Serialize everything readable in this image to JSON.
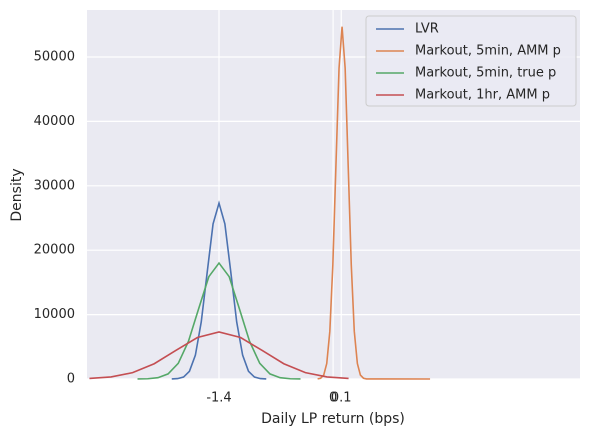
{
  "chart_data": {
    "type": "line",
    "xlabel": "Daily LP return (bps)",
    "ylabel": "Density",
    "xlim": [
      -3.02,
      3.03
    ],
    "ylim": [
      0,
      57300
    ],
    "xticks": [
      -1.4,
      0,
      0.1
    ],
    "yticks": [
      0,
      10000,
      20000,
      30000,
      40000,
      50000
    ],
    "grid": true,
    "legend": "upper right",
    "series": [
      {
        "name": "LVR",
        "color": "#4c72b0",
        "x": [
          -1.98,
          -1.908,
          -1.835,
          -1.763,
          -1.69,
          -1.618,
          -1.545,
          -1.473,
          -1.4,
          -1.328,
          -1.255,
          -1.183,
          -1.11,
          -1.038,
          -0.965,
          -0.893,
          -0.82
        ],
        "values": [
          8,
          60,
          303,
          1198,
          3694,
          8864,
          16557,
          24092,
          27300,
          24092,
          16557,
          8864,
          3694,
          1198,
          303,
          60,
          8
        ]
      },
      {
        "name": "Markout, 5min, AMM p",
        "color": "#dd8452",
        "x": [
          -0.19,
          -0.153,
          -0.115,
          -0.078,
          -0.04,
          -0.003,
          0.035,
          0.073,
          0.11,
          0.148,
          0.185,
          0.223,
          0.26,
          0.298,
          0.335,
          0.373,
          0.41,
          1.19
        ],
        "values": [
          16,
          120,
          607,
          2401,
          7401,
          17761,
          33176,
          48272,
          54700,
          48272,
          33176,
          17761,
          7401,
          2401,
          607,
          120,
          16,
          0
        ]
      },
      {
        "name": "Markout, 5min, true p",
        "color": "#55a868",
        "x": [
          -2.4,
          -2.275,
          -2.15,
          -2.025,
          -1.9,
          -1.775,
          -1.65,
          -1.525,
          -1.4,
          -1.275,
          -1.15,
          -1.025,
          -0.9,
          -0.775,
          -0.65,
          -0.525,
          -0.4
        ],
        "values": [
          5,
          40,
          200,
          790,
          2435,
          5845,
          10917,
          15885,
          18000,
          15885,
          10917,
          5845,
          2435,
          790,
          200,
          40,
          5
        ]
      },
      {
        "name": "Markout, 1hr, AMM p",
        "color": "#c44e52",
        "x": [
          -2.99,
          -2.725,
          -2.46,
          -2.195,
          -1.93,
          -1.665,
          -1.4,
          -1.135,
          -0.87,
          -0.605,
          -0.34,
          -0.075,
          0.19
        ],
        "values": [
          81,
          320,
          988,
          2370,
          4427,
          6442,
          7300,
          6442,
          4427,
          2370,
          988,
          320,
          81
        ]
      }
    ]
  }
}
